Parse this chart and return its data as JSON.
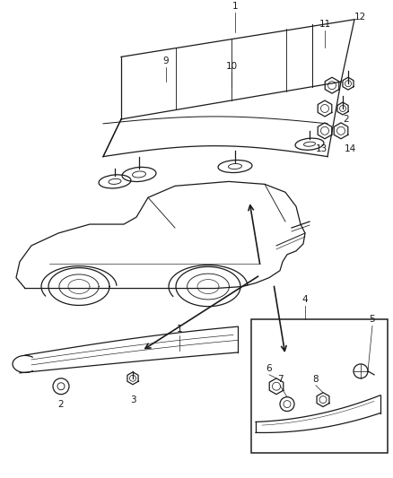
{
  "background_color": "#ffffff",
  "line_color": "#1a1a1a",
  "fig_width": 4.38,
  "fig_height": 5.33,
  "dpi": 100
}
